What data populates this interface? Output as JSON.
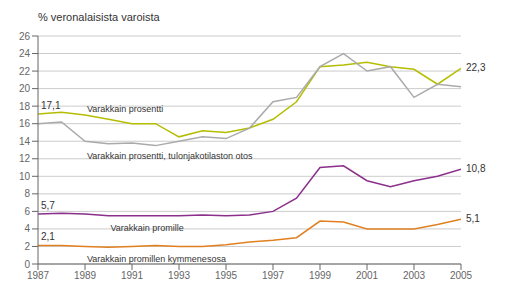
{
  "chart_data": {
    "type": "line",
    "title": "% veronalaisista varoista",
    "x": [
      1987,
      1988,
      1989,
      1990,
      1991,
      1992,
      1993,
      1994,
      1995,
      1996,
      1997,
      1998,
      1999,
      2000,
      2001,
      2002,
      2003,
      2004,
      2005
    ],
    "xlim": [
      1987,
      2005
    ],
    "xticks": [
      1987,
      1989,
      1991,
      1993,
      1995,
      1997,
      1999,
      2001,
      2003,
      2005
    ],
    "ylim": [
      0,
      26
    ],
    "yticks": [
      0,
      2,
      4,
      6,
      8,
      10,
      12,
      14,
      16,
      18,
      20,
      22,
      24,
      26
    ],
    "grid": "y",
    "series": [
      {
        "name": "Varakkain prosentti",
        "color": "#b5bd00",
        "values": [
          17.1,
          17.3,
          17.0,
          16.5,
          16.0,
          16.0,
          14.5,
          15.2,
          15.0,
          15.5,
          16.5,
          18.5,
          22.5,
          22.7,
          23.0,
          22.5,
          22.2,
          20.5,
          22.3
        ]
      },
      {
        "name": "Varakkain prosentti, tulonjakotilaston otos",
        "color": "#aaaaaa",
        "values": [
          16.0,
          16.2,
          14.0,
          13.7,
          13.8,
          13.5,
          14.0,
          14.5,
          14.3,
          15.5,
          18.5,
          19.0,
          22.5,
          24.0,
          22.0,
          22.5,
          19.0,
          20.5,
          20.2
        ]
      },
      {
        "name": "Varakkain promille",
        "color": "#8b2f8b",
        "values": [
          5.7,
          5.8,
          5.7,
          5.5,
          5.5,
          5.5,
          5.5,
          5.6,
          5.5,
          5.6,
          6.0,
          7.5,
          11.0,
          11.2,
          9.5,
          8.8,
          9.5,
          10.0,
          10.8
        ]
      },
      {
        "name": "Varakkain promillen kymmenesosa",
        "color": "#e08020",
        "values": [
          2.1,
          2.1,
          2.0,
          1.9,
          2.0,
          2.1,
          2.0,
          2.0,
          2.2,
          2.5,
          2.7,
          3.0,
          4.9,
          4.8,
          4.0,
          4.0,
          4.0,
          4.5,
          5.1
        ]
      }
    ],
    "annotations": [
      {
        "text": "17,1",
        "x": 1987,
        "y": 17.1
      },
      {
        "text": "5,7",
        "x": 1987,
        "y": 5.7
      },
      {
        "text": "2,1",
        "x": 1987,
        "y": 2.1
      },
      {
        "text": "22,3",
        "x": 2005,
        "y": 22.3
      },
      {
        "text": "10,8",
        "x": 2005,
        "y": 10.8
      },
      {
        "text": "5,1",
        "x": 2005,
        "y": 5.1
      }
    ]
  }
}
